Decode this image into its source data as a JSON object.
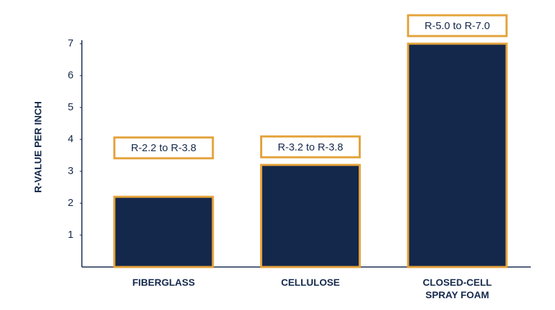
{
  "chart_data": {
    "type": "bar",
    "y_label": "R-VALUE PER INCH",
    "categories": [
      "FIBERGLASS",
      "CELLULOSE",
      "CLOSED-CELL SPRAY FOAM"
    ],
    "values": [
      2.2,
      3.2,
      7.0
    ],
    "value_labels": [
      "R-2.2 to R-3.8",
      "R-3.2 to R-3.8",
      "R-5.0 to R-7.0"
    ],
    "range_high": [
      3.8,
      3.8,
      7.0
    ],
    "color": "#14284b",
    "edge_color": "#e4a23a",
    "ylim": [
      0,
      7
    ],
    "yticks": [
      1,
      2,
      3,
      4,
      5,
      6,
      7
    ],
    "grid": false
  }
}
